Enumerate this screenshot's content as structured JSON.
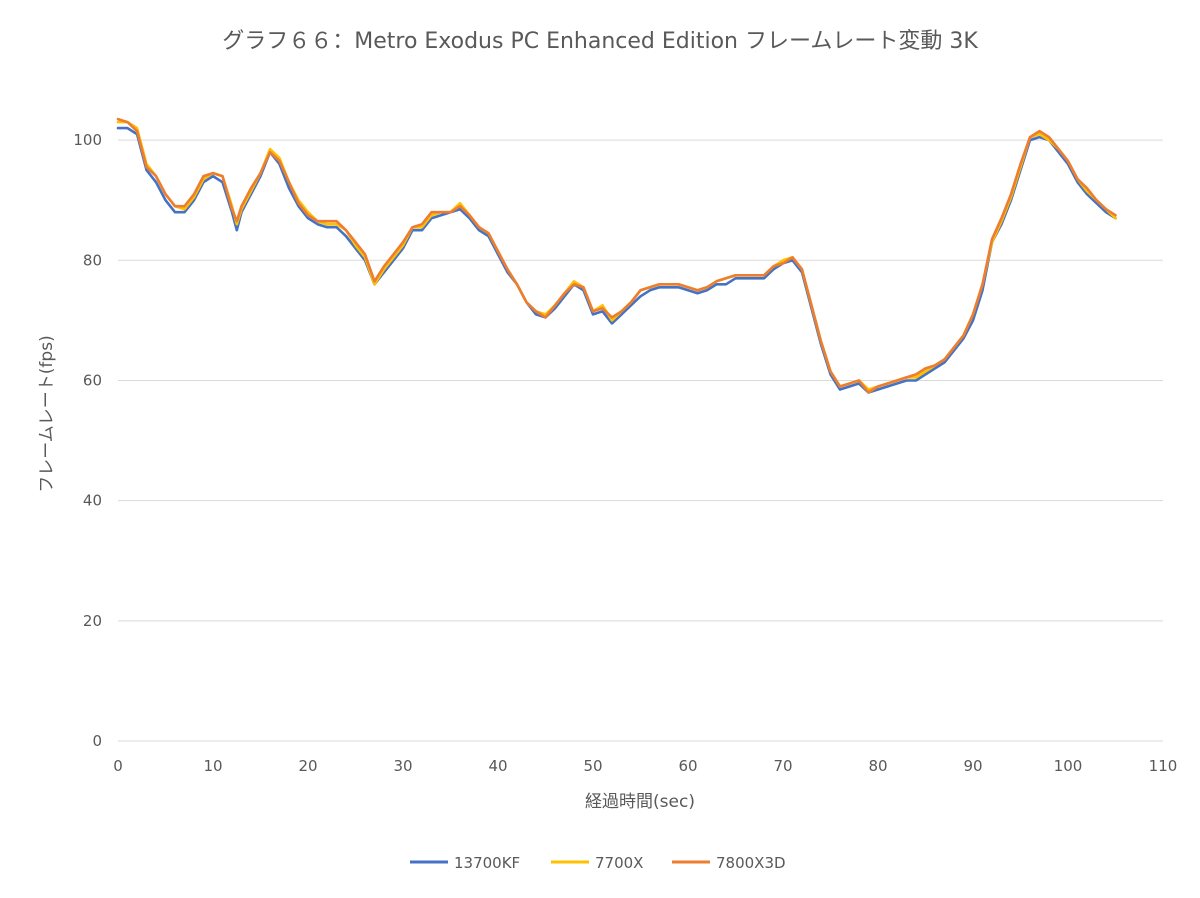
{
  "chart_data": {
    "type": "line",
    "title": "グラフ６６：Metro Exodus PC Enhanced Edition フレームレート変動 3K",
    "xlabel": "経過時間(sec)",
    "ylabel": "フレームレート(fps)",
    "xlim": [
      0,
      110
    ],
    "ylim": [
      0,
      110
    ],
    "x_ticks": [
      0,
      10,
      20,
      30,
      40,
      50,
      60,
      70,
      80,
      90,
      100,
      110
    ],
    "y_ticks": [
      0,
      20,
      40,
      60,
      80,
      100
    ],
    "grid": true,
    "legend_position": "bottom",
    "x": [
      0,
      1,
      2,
      3,
      4,
      5,
      6,
      7,
      8,
      9,
      10,
      11,
      12,
      12.5,
      13,
      14,
      15,
      16,
      17,
      18,
      19,
      20,
      21,
      22,
      23,
      24,
      25,
      26,
      27,
      28,
      29,
      30,
      31,
      32,
      33,
      34,
      35,
      36,
      37,
      38,
      39,
      40,
      41,
      42,
      43,
      44,
      45,
      46,
      47,
      48,
      49,
      50,
      51,
      52,
      53,
      54,
      55,
      56,
      57,
      58,
      59,
      60,
      61,
      62,
      63,
      64,
      65,
      66,
      67,
      68,
      69,
      70,
      71,
      72,
      73,
      74,
      75,
      76,
      77,
      78,
      79,
      80,
      81,
      82,
      83,
      84,
      85,
      86,
      87,
      88,
      89,
      90,
      91,
      92,
      93,
      94,
      95,
      96,
      97,
      98,
      99,
      100,
      101,
      102,
      103,
      104,
      105
    ],
    "series": [
      {
        "name": "13700KF",
        "color": "#4472c4",
        "values": [
          102,
          102,
          101,
          95,
          93,
          90,
          88,
          88,
          90,
          93,
          94,
          93,
          88,
          85,
          88,
          91,
          94,
          98,
          96,
          92,
          89,
          87,
          86,
          85.5,
          85.5,
          84,
          82,
          80,
          76,
          78,
          80,
          82,
          85,
          85,
          87,
          87.5,
          88,
          88.5,
          87,
          85,
          84,
          81,
          78,
          76,
          73,
          71,
          70.5,
          72,
          74,
          76,
          75,
          71,
          71.5,
          69.5,
          71,
          72.5,
          74,
          75,
          75.5,
          75.5,
          75.5,
          75,
          74.5,
          75,
          76,
          76,
          77,
          77,
          77,
          77,
          78.5,
          79.5,
          80,
          78,
          72,
          66,
          61,
          58.5,
          59,
          59.5,
          58,
          58.5,
          59,
          59.5,
          60,
          60,
          61,
          62,
          63,
          65,
          67,
          70,
          75,
          83,
          86,
          90,
          95,
          100,
          100.5,
          100,
          98,
          96,
          93,
          91,
          89.5,
          88,
          87
        ]
      },
      {
        "name": "7700X",
        "color": "#ffc000",
        "values": [
          103,
          103,
          102,
          96,
          94,
          91,
          89,
          88.5,
          90.5,
          93.5,
          94.5,
          94,
          89,
          86,
          88.5,
          91.5,
          94.5,
          98.5,
          97,
          93,
          90,
          88,
          86.5,
          86,
          86,
          85,
          82.5,
          80.5,
          76,
          78.5,
          80.5,
          82.5,
          85.5,
          85.5,
          87.5,
          88,
          88,
          89.5,
          87.5,
          85.5,
          84.5,
          81.5,
          78.5,
          76,
          73,
          71.5,
          71,
          72.5,
          74.5,
          76.5,
          75.5,
          71.5,
          72.5,
          70,
          71.5,
          73,
          75,
          75.5,
          76,
          76,
          76,
          75.5,
          75,
          75.5,
          76.5,
          77,
          77.5,
          77.5,
          77.5,
          77.5,
          79,
          80,
          80.5,
          78.5,
          72.5,
          66.5,
          61.5,
          59,
          59.5,
          60,
          58.5,
          59,
          59.5,
          60,
          60.5,
          60.5,
          61.5,
          62.5,
          63.5,
          65.5,
          67.5,
          71,
          76,
          83,
          86.5,
          90.5,
          95.5,
          100.5,
          101,
          100,
          98.5,
          96.5,
          93.5,
          91.5,
          90,
          88.5,
          87
        ]
      },
      {
        "name": "7800X3D",
        "color": "#ed7d31",
        "values": [
          103.5,
          103,
          101.5,
          95.5,
          94,
          91,
          89,
          89,
          91,
          94,
          94.5,
          94,
          88.5,
          86.5,
          89,
          92,
          94.5,
          98,
          96.5,
          93,
          89.5,
          87.5,
          86.5,
          86.5,
          86.5,
          85,
          83,
          81,
          76.5,
          79,
          81,
          83,
          85.5,
          86,
          88,
          88,
          88,
          89,
          87.5,
          85.5,
          84.5,
          81.5,
          78.5,
          76,
          73,
          71.5,
          70.5,
          72.5,
          74.5,
          76,
          75.5,
          71.5,
          72,
          70.5,
          71.5,
          73,
          75,
          75.5,
          76,
          76,
          76,
          75.5,
          75,
          75.5,
          76.5,
          77,
          77.5,
          77.5,
          77.5,
          77.5,
          79,
          79.5,
          80.5,
          78.5,
          72.5,
          66.5,
          61.5,
          59,
          59.5,
          60,
          58,
          59,
          59.5,
          60,
          60.5,
          61,
          62,
          62.5,
          63.5,
          65.5,
          67.5,
          71,
          76,
          83.5,
          87,
          91,
          96,
          100.5,
          101.5,
          100.5,
          98.5,
          96.5,
          93.5,
          92,
          90,
          88.5,
          87.5
        ]
      }
    ]
  }
}
